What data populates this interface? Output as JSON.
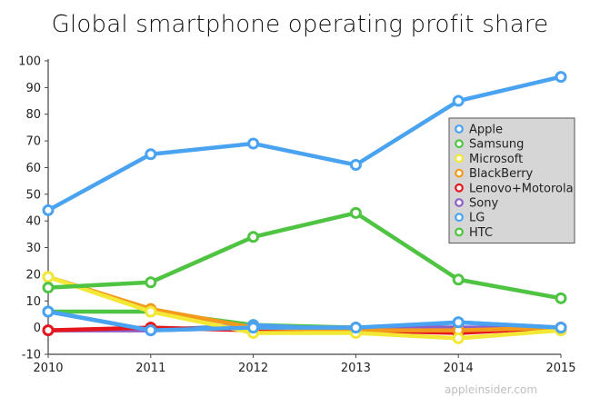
{
  "chart_data": {
    "type": "line",
    "title": "Global smartphone operating profit share",
    "x": [
      "2010",
      "2011",
      "2012",
      "2013",
      "2014",
      "2015"
    ],
    "ylim": [
      -10,
      100
    ],
    "yticks": [
      "100",
      "90",
      "80",
      "70",
      "60",
      "50",
      "40",
      "30",
      "20",
      "10",
      "0",
      "-10"
    ],
    "ytick_values": [
      100,
      90,
      80,
      70,
      60,
      50,
      40,
      30,
      20,
      10,
      0,
      -10
    ],
    "grid": false,
    "legend_position": "right",
    "series": [
      {
        "name": "Apple",
        "color": "#4aa3f0",
        "values": [
          6,
          -1,
          0,
          0,
          2,
          0
        ]
      },
      {
        "name": "Samsung",
        "color": "#4fc442",
        "values": [
          15,
          17,
          34,
          43,
          18,
          11
        ]
      },
      {
        "name": "Microsoft",
        "color": "#f2e835",
        "values": [
          19,
          6,
          -2,
          -2,
          -4,
          -1
        ]
      },
      {
        "name": "BlackBerry",
        "color": "#f39a1d",
        "values": [
          19,
          7,
          0,
          -1,
          -1,
          0
        ]
      },
      {
        "name": "Lenovo+Motorola",
        "color": "#e5161c",
        "values": [
          -1,
          0,
          -1,
          -1,
          -2,
          0
        ]
      },
      {
        "name": "Sony",
        "color": "#8e5ec9",
        "values": [
          -1,
          -1,
          0,
          0,
          0,
          0
        ]
      },
      {
        "name": "LG",
        "color": "#4aa3f0",
        "values": [
          6,
          -1,
          1,
          -1,
          2,
          0
        ]
      },
      {
        "name": "HTC",
        "color": "#4fc442",
        "values": [
          6,
          6,
          1,
          0,
          0,
          -1
        ]
      },
      {
        "name": "Apple",
        "color": "#4aa3f0",
        "values": [
          44,
          65,
          69,
          61,
          85,
          94
        ],
        "legend": false
      }
    ]
  },
  "watermark": "appleinsider.com"
}
